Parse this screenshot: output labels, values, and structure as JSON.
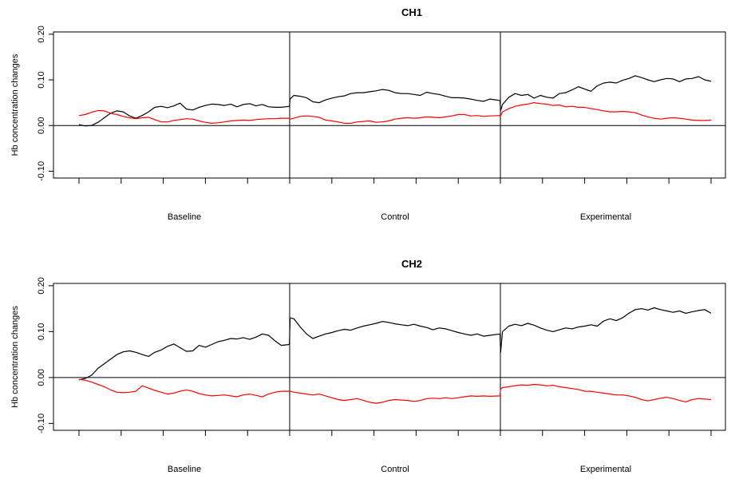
{
  "chart_data": [
    {
      "type": "line",
      "title": "CH1",
      "xlabel": "",
      "ylabel": "Hb concentration changes",
      "ylim": [
        -0.115,
        0.205
      ],
      "xlim": [
        0,
        100
      ],
      "y_ticks": [
        -0.1,
        0.0,
        0.1,
        0.2
      ],
      "y_tick_labels": [
        "-0.10",
        "0.00",
        "0.10",
        "0.20"
      ],
      "x_ticks": [
        0,
        6.67,
        13.33,
        20,
        26.67,
        33.33,
        40,
        46.67,
        53.33,
        60,
        66.67,
        73.33,
        80,
        86.67,
        93.33,
        100
      ],
      "phase_boundaries": [
        33.33,
        66.67
      ],
      "categories": [
        "Baseline",
        "Control",
        "Experimental"
      ],
      "category_centers": [
        16.67,
        50,
        83.33
      ],
      "zero_line": 0,
      "grid": false,
      "series": [
        {
          "color": "#000000",
          "x": [
            0,
            1,
            2,
            3,
            4,
            5,
            6,
            7,
            8,
            9,
            10,
            11,
            12,
            13,
            14,
            15,
            16,
            17,
            18,
            19,
            20,
            21,
            22,
            23,
            24,
            25,
            26,
            27,
            28,
            29,
            30,
            31,
            32,
            33.3,
            33.4,
            34,
            35,
            36,
            37,
            38,
            39,
            40,
            41,
            42,
            43,
            44,
            45,
            46,
            47,
            48,
            49,
            50,
            51,
            52,
            53,
            54,
            55,
            56,
            57,
            58,
            59,
            60,
            61,
            62,
            63,
            64,
            65,
            66.6,
            66.7,
            67,
            68,
            69,
            70,
            71,
            72,
            73,
            74,
            75,
            76,
            77,
            78,
            79,
            80,
            81,
            82,
            83,
            84,
            85,
            86,
            87,
            88,
            89,
            90,
            91,
            92,
            93,
            94,
            95,
            96,
            97,
            98,
            99,
            100
          ],
          "values": [
            0.002,
            -0.001,
            0.0,
            0.007,
            0.017,
            0.027,
            0.032,
            0.03,
            0.021,
            0.016,
            0.022,
            0.03,
            0.04,
            0.042,
            0.039,
            0.043,
            0.049,
            0.036,
            0.034,
            0.04,
            0.044,
            0.047,
            0.046,
            0.044,
            0.047,
            0.041,
            0.046,
            0.048,
            0.043,
            0.046,
            0.041,
            0.04,
            0.04,
            0.042,
            0.058,
            0.066,
            0.064,
            0.061,
            0.052,
            0.05,
            0.056,
            0.06,
            0.063,
            0.065,
            0.07,
            0.072,
            0.072,
            0.074,
            0.076,
            0.079,
            0.077,
            0.072,
            0.07,
            0.07,
            0.068,
            0.066,
            0.073,
            0.07,
            0.068,
            0.064,
            0.061,
            0.061,
            0.06,
            0.058,
            0.055,
            0.053,
            0.058,
            0.055,
            0.033,
            0.046,
            0.062,
            0.07,
            0.066,
            0.068,
            0.06,
            0.066,
            0.062,
            0.06,
            0.07,
            0.072,
            0.078,
            0.085,
            0.08,
            0.075,
            0.087,
            0.093,
            0.095,
            0.093,
            0.099,
            0.103,
            0.109,
            0.105,
            0.1,
            0.096,
            0.1,
            0.103,
            0.102,
            0.096,
            0.102,
            0.103,
            0.107,
            0.1,
            0.097
          ]
        },
        {
          "color": "#ff0000",
          "x": [
            0,
            1,
            2,
            3,
            4,
            5,
            6,
            7,
            8,
            9,
            10,
            11,
            12,
            13,
            14,
            15,
            16,
            17,
            18,
            19,
            20,
            21,
            22,
            23,
            24,
            25,
            26,
            27,
            28,
            29,
            30,
            31,
            32,
            33.3,
            33.4,
            34,
            35,
            36,
            37,
            38,
            39,
            40,
            41,
            42,
            43,
            44,
            45,
            46,
            47,
            48,
            49,
            50,
            51,
            52,
            53,
            54,
            55,
            56,
            57,
            58,
            59,
            60,
            61,
            62,
            63,
            64,
            65,
            66.6,
            66.7,
            67,
            68,
            69,
            70,
            71,
            72,
            73,
            74,
            75,
            76,
            77,
            78,
            79,
            80,
            81,
            82,
            83,
            84,
            85,
            86,
            87,
            88,
            89,
            90,
            91,
            92,
            93,
            94,
            95,
            96,
            97,
            98,
            99,
            100
          ],
          "values": [
            0.022,
            0.024,
            0.029,
            0.033,
            0.032,
            0.027,
            0.024,
            0.02,
            0.017,
            0.015,
            0.017,
            0.018,
            0.013,
            0.008,
            0.008,
            0.011,
            0.013,
            0.015,
            0.014,
            0.01,
            0.007,
            0.005,
            0.006,
            0.008,
            0.01,
            0.011,
            0.012,
            0.011,
            0.013,
            0.014,
            0.015,
            0.015,
            0.016,
            0.016,
            0.014,
            0.016,
            0.02,
            0.021,
            0.02,
            0.018,
            0.012,
            0.01,
            0.008,
            0.005,
            0.005,
            0.008,
            0.009,
            0.01,
            0.007,
            0.008,
            0.01,
            0.014,
            0.016,
            0.017,
            0.016,
            0.017,
            0.019,
            0.018,
            0.017,
            0.019,
            0.021,
            0.024,
            0.024,
            0.021,
            0.022,
            0.02,
            0.021,
            0.022,
            0.021,
            0.03,
            0.037,
            0.042,
            0.045,
            0.047,
            0.05,
            0.048,
            0.047,
            0.044,
            0.045,
            0.041,
            0.042,
            0.04,
            0.04,
            0.037,
            0.035,
            0.032,
            0.03,
            0.03,
            0.031,
            0.03,
            0.028,
            0.023,
            0.019,
            0.016,
            0.014,
            0.016,
            0.017,
            0.016,
            0.014,
            0.012,
            0.011,
            0.011,
            0.012
          ]
        }
      ]
    },
    {
      "type": "line",
      "title": "CH2",
      "xlabel": "",
      "ylabel": "Hb concentration changes",
      "ylim": [
        -0.115,
        0.205
      ],
      "xlim": [
        0,
        100
      ],
      "y_ticks": [
        -0.1,
        0.0,
        0.1,
        0.2
      ],
      "y_tick_labels": [
        "-0.10",
        "0.00",
        "0.10",
        "0.20"
      ],
      "x_ticks": [
        0,
        6.67,
        13.33,
        20,
        26.67,
        33.33,
        40,
        46.67,
        53.33,
        60,
        66.67,
        73.33,
        80,
        86.67,
        93.33,
        100
      ],
      "phase_boundaries": [
        33.33,
        66.67
      ],
      "categories": [
        "Baseline",
        "Control",
        "Experimental"
      ],
      "category_centers": [
        16.67,
        50,
        83.33
      ],
      "zero_line": 0,
      "grid": false,
      "series": [
        {
          "color": "#000000",
          "x": [
            0,
            1,
            2,
            3,
            4,
            5,
            6,
            7,
            8,
            9,
            10,
            11,
            12,
            13,
            14,
            15,
            16,
            17,
            18,
            19,
            20,
            21,
            22,
            23,
            24,
            25,
            26,
            27,
            28,
            29,
            30,
            31,
            32,
            33.3,
            33.4,
            34,
            35,
            36,
            37,
            38,
            39,
            40,
            41,
            42,
            43,
            44,
            45,
            46,
            47,
            48,
            49,
            50,
            51,
            52,
            53,
            54,
            55,
            56,
            57,
            58,
            59,
            60,
            61,
            62,
            63,
            64,
            65,
            66.6,
            66.7,
            67,
            68,
            69,
            70,
            71,
            72,
            73,
            74,
            75,
            76,
            77,
            78,
            79,
            80,
            81,
            82,
            83,
            84,
            85,
            86,
            87,
            88,
            89,
            90,
            91,
            92,
            93,
            94,
            95,
            96,
            97,
            98,
            99,
            100
          ],
          "values": [
            -0.005,
            -0.002,
            0.005,
            0.02,
            0.03,
            0.04,
            0.05,
            0.056,
            0.058,
            0.055,
            0.05,
            0.046,
            0.055,
            0.06,
            0.068,
            0.073,
            0.065,
            0.057,
            0.058,
            0.07,
            0.066,
            0.072,
            0.078,
            0.081,
            0.085,
            0.084,
            0.087,
            0.083,
            0.088,
            0.095,
            0.092,
            0.08,
            0.07,
            0.072,
            0.13,
            0.128,
            0.11,
            0.095,
            0.085,
            0.09,
            0.095,
            0.098,
            0.102,
            0.105,
            0.103,
            0.108,
            0.112,
            0.115,
            0.118,
            0.122,
            0.12,
            0.117,
            0.115,
            0.113,
            0.116,
            0.112,
            0.109,
            0.104,
            0.108,
            0.106,
            0.102,
            0.098,
            0.095,
            0.092,
            0.095,
            0.09,
            0.092,
            0.095,
            0.055,
            0.1,
            0.112,
            0.116,
            0.113,
            0.118,
            0.114,
            0.108,
            0.103,
            0.1,
            0.104,
            0.108,
            0.106,
            0.11,
            0.112,
            0.115,
            0.112,
            0.123,
            0.128,
            0.124,
            0.13,
            0.14,
            0.148,
            0.15,
            0.147,
            0.152,
            0.148,
            0.145,
            0.142,
            0.145,
            0.14,
            0.143,
            0.146,
            0.148,
            0.14
          ]
        },
        {
          "color": "#ff0000",
          "x": [
            0,
            1,
            2,
            3,
            4,
            5,
            6,
            7,
            8,
            9,
            10,
            11,
            12,
            13,
            14,
            15,
            16,
            17,
            18,
            19,
            20,
            21,
            22,
            23,
            24,
            25,
            26,
            27,
            28,
            29,
            30,
            31,
            32,
            33.3,
            33.4,
            34,
            35,
            36,
            37,
            38,
            39,
            40,
            41,
            42,
            43,
            44,
            45,
            46,
            47,
            48,
            49,
            50,
            51,
            52,
            53,
            54,
            55,
            56,
            57,
            58,
            59,
            60,
            61,
            62,
            63,
            64,
            65,
            66.6,
            66.7,
            67,
            68,
            69,
            70,
            71,
            72,
            73,
            74,
            75,
            76,
            77,
            78,
            79,
            80,
            81,
            82,
            83,
            84,
            85,
            86,
            87,
            88,
            89,
            90,
            91,
            92,
            93,
            94,
            95,
            96,
            97,
            98,
            99,
            100
          ],
          "values": [
            -0.004,
            -0.006,
            -0.01,
            -0.015,
            -0.02,
            -0.027,
            -0.032,
            -0.033,
            -0.032,
            -0.03,
            -0.018,
            -0.023,
            -0.028,
            -0.032,
            -0.036,
            -0.034,
            -0.03,
            -0.027,
            -0.03,
            -0.035,
            -0.038,
            -0.04,
            -0.039,
            -0.038,
            -0.04,
            -0.042,
            -0.038,
            -0.036,
            -0.039,
            -0.042,
            -0.036,
            -0.032,
            -0.03,
            -0.03,
            -0.03,
            -0.032,
            -0.034,
            -0.036,
            -0.038,
            -0.036,
            -0.04,
            -0.044,
            -0.048,
            -0.05,
            -0.048,
            -0.046,
            -0.05,
            -0.054,
            -0.056,
            -0.054,
            -0.05,
            -0.048,
            -0.049,
            -0.05,
            -0.052,
            -0.05,
            -0.046,
            -0.045,
            -0.046,
            -0.044,
            -0.046,
            -0.044,
            -0.042,
            -0.04,
            -0.041,
            -0.04,
            -0.041,
            -0.04,
            -0.025,
            -0.022,
            -0.02,
            -0.018,
            -0.016,
            -0.017,
            -0.015,
            -0.016,
            -0.018,
            -0.017,
            -0.02,
            -0.022,
            -0.024,
            -0.026,
            -0.03,
            -0.03,
            -0.032,
            -0.034,
            -0.036,
            -0.038,
            -0.038,
            -0.04,
            -0.043,
            -0.048,
            -0.051,
            -0.048,
            -0.045,
            -0.043,
            -0.046,
            -0.05,
            -0.053,
            -0.048,
            -0.046,
            -0.047,
            -0.048
          ]
        }
      ]
    }
  ]
}
